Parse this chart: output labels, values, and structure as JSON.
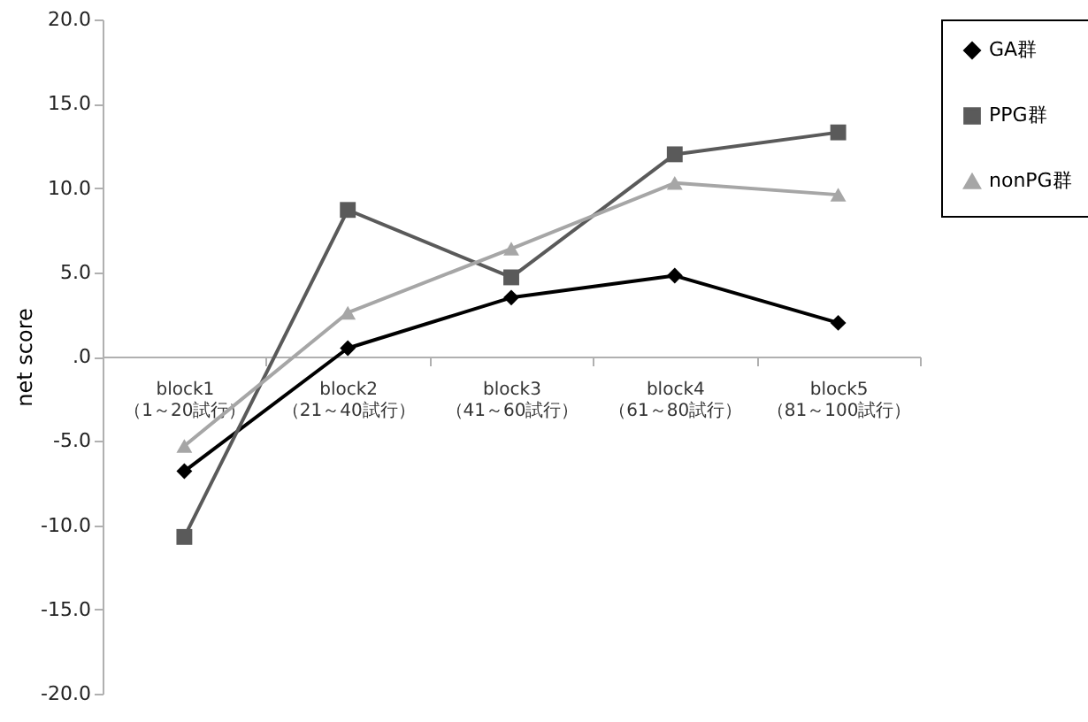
{
  "chart_data": {
    "type": "line",
    "ylabel": "net score",
    "categories": [
      "block1\n（1～20試行）",
      "block2\n（21～40試行）",
      "block3\n（41～60試行）",
      "block4\n（61～80試行）",
      "block5\n（81～100試行）"
    ],
    "series": [
      {
        "name": "GA群",
        "color": "#000000",
        "marker": "diamond",
        "values": [
          -6.8,
          0.5,
          3.5,
          4.8,
          2.0
        ]
      },
      {
        "name": "PPG群",
        "color": "#5a5a5a",
        "marker": "square",
        "values": [
          -10.7,
          8.7,
          4.7,
          12.0,
          13.3
        ]
      },
      {
        "name": "nonPG群",
        "color": "#a6a6a6",
        "marker": "triangle",
        "values": [
          -5.3,
          2.6,
          6.4,
          10.3,
          9.6
        ]
      }
    ],
    "ylim": [
      -20,
      20
    ],
    "yticks": [
      {
        "value": -20,
        "label": "-20.0"
      },
      {
        "value": -15,
        "label": "-15.0"
      },
      {
        "value": -10,
        "label": "-10.0"
      },
      {
        "value": -5,
        "label": "-5.0"
      },
      {
        "value": 0,
        "label": ".0"
      },
      {
        "value": 5,
        "label": "5.0"
      },
      {
        "value": 10,
        "label": "10.0"
      },
      {
        "value": 15,
        "label": "15.0"
      },
      {
        "value": 20,
        "label": "20.0"
      }
    ],
    "grid": false,
    "legend": "top right"
  }
}
